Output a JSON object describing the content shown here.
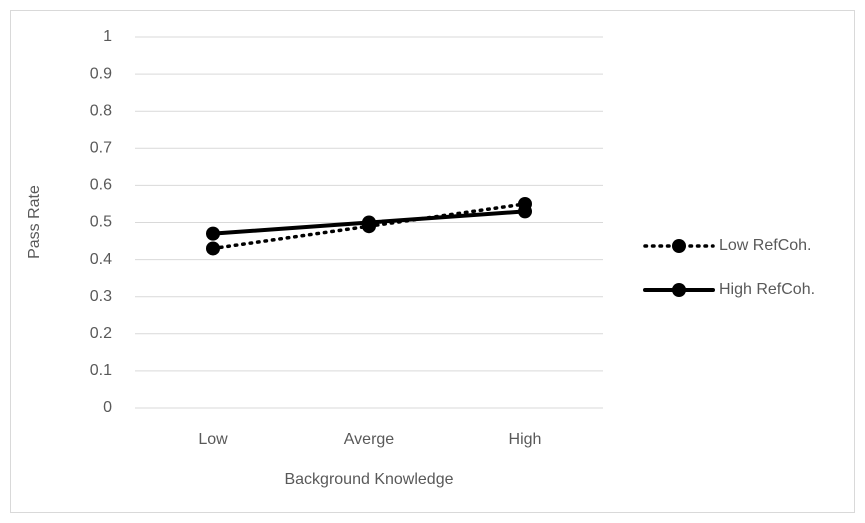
{
  "chart_data": {
    "type": "line",
    "x_label": "Background Knowledge",
    "y_label": "Pass Rate",
    "categories": [
      "Low",
      "Averge",
      "High"
    ],
    "series": [
      {
        "name": "Low RefCoh.",
        "color": "#000000",
        "dash": "dotted",
        "values": [
          0.43,
          0.49,
          0.55
        ]
      },
      {
        "name": "High RefCoh.",
        "color": "#000000",
        "dash": "solid",
        "values": [
          0.47,
          0.5,
          0.53
        ]
      }
    ],
    "ylim": [
      0,
      1
    ],
    "yticks": [
      0,
      0.1,
      0.2,
      0.3,
      0.4,
      0.5,
      0.6,
      0.7,
      0.8,
      0.9,
      1
    ],
    "grid": true,
    "legend": "right"
  }
}
